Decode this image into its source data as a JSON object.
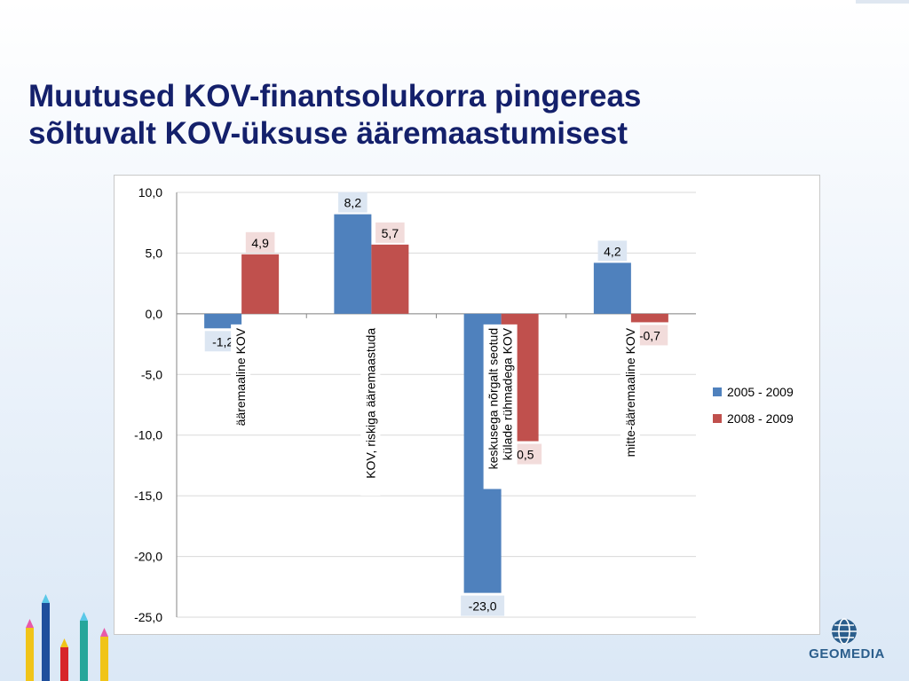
{
  "slide": {
    "title_line1": "Muutused KOV-finantsolukorra pingereas",
    "title_line2": "sõltuvalt KOV-üksuse ääremaastumisest",
    "logo_text": "GEOMEDIA",
    "title_color": "#14206b"
  },
  "chart_data": {
    "type": "bar",
    "categories": [
      [
        "ääremaaline KOV"
      ],
      [
        "KOV, riskiga ääremaastuda"
      ],
      [
        "keskusega nõrgalt seotud",
        "külade rühmadega KOV"
      ],
      [
        "mitte-ääremaaline KOV"
      ]
    ],
    "series": [
      {
        "name": "2005 - 2009",
        "color": "#4f81bd",
        "label_bg": "#dce6f2",
        "values": [
          -1.2,
          8.2,
          -23.0,
          4.2
        ],
        "labels": [
          "-1,2",
          "8,2",
          "-23,0",
          "4,2"
        ]
      },
      {
        "name": "2008 - 2009",
        "color": "#c0504d",
        "label_bg": "#f2dcdb",
        "values": [
          4.9,
          5.7,
          -10.5,
          -0.7
        ],
        "labels": [
          "4,9",
          "5,7",
          "-10,5",
          "-0,7"
        ]
      }
    ],
    "ylim": [
      -25,
      10
    ],
    "yticks": [
      10,
      5,
      0,
      -5,
      -10,
      -15,
      -20,
      -25
    ],
    "ytick_labels": [
      "10,0",
      "5,0",
      "0,0",
      "-5,0",
      "-10,0",
      "-15,0",
      "-20,0",
      "-25,0"
    ],
    "xlabel": "",
    "ylabel": "",
    "legend_position": "right",
    "grid": "horizontal"
  }
}
